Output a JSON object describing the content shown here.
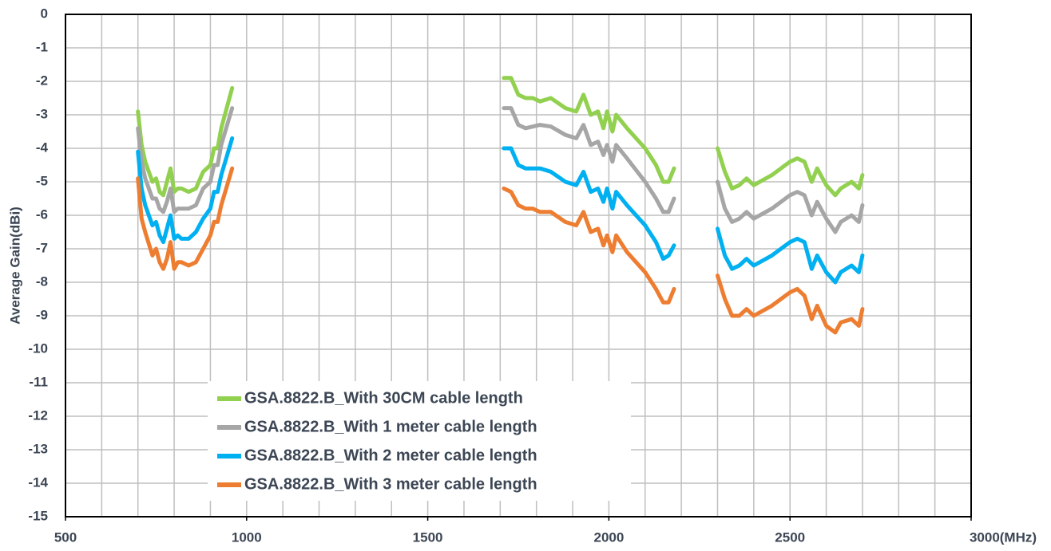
{
  "chart_data": {
    "type": "line",
    "y_label": "Average Gain(dBi)",
    "xlim": [
      500,
      3000
    ],
    "xticks": [
      500,
      1000,
      1500,
      2000,
      2500,
      {
        "value": 3000,
        "label": "3000(MHz)"
      }
    ],
    "x_grid_ticks": [
      500,
      600,
      700,
      800,
      900,
      1000,
      1100,
      1200,
      1300,
      1400,
      1500,
      1600,
      1700,
      1800,
      1900,
      2000,
      2100,
      2200,
      2300,
      2400,
      2500,
      2600,
      2700,
      2800,
      2900,
      3000
    ],
    "ylim": [
      -15,
      0
    ],
    "yticks": [
      0,
      -1,
      -2,
      -3,
      -4,
      -5,
      -6,
      -7,
      -8,
      -9,
      -10,
      -11,
      -12,
      -13,
      -14,
      -15
    ],
    "grid": true,
    "legend": "lower left",
    "x": [
      700,
      710,
      720,
      740,
      750,
      760,
      770,
      780,
      790,
      800,
      810,
      820,
      840,
      860,
      880,
      900,
      910,
      920,
      930,
      960,
      null,
      1710,
      1730,
      1750,
      1770,
      1790,
      1810,
      1840,
      1880,
      1910,
      1930,
      1950,
      1970,
      1985,
      1995,
      2010,
      2020,
      2050,
      2100,
      2130,
      2150,
      2165,
      2180,
      null,
      2300,
      2320,
      2340,
      2360,
      2380,
      2400,
      2450,
      2500,
      2520,
      2540,
      2560,
      2575,
      2600,
      2625,
      2640,
      2670,
      2690,
      2700
    ],
    "series": [
      {
        "name": "GSA.8822.B_With 30CM cable length",
        "color": "#92d050",
        "values": [
          -2.9,
          -3.9,
          -4.4,
          -5.0,
          -4.9,
          -5.3,
          -5.4,
          -5.0,
          -4.6,
          -5.3,
          -5.2,
          -5.2,
          -5.3,
          -5.2,
          -4.7,
          -4.5,
          -4.0,
          -4.0,
          -3.4,
          -2.2,
          null,
          -1.9,
          -1.9,
          -2.4,
          -2.5,
          -2.5,
          -2.6,
          -2.5,
          -2.8,
          -2.9,
          -2.4,
          -3.0,
          -2.9,
          -3.4,
          -2.9,
          -3.5,
          -3.0,
          -3.4,
          -4.0,
          -4.5,
          -5.0,
          -5.0,
          -4.6,
          null,
          -4.0,
          -4.7,
          -5.2,
          -5.1,
          -4.9,
          -5.1,
          -4.8,
          -4.4,
          -4.3,
          -4.4,
          -5.0,
          -4.6,
          -5.1,
          -5.4,
          -5.2,
          -5.0,
          -5.2,
          -4.8
        ]
      },
      {
        "name": "GSA.8822.B_With 1 meter cable length",
        "color": "#a6a6a6",
        "values": [
          -3.4,
          -4.4,
          -4.9,
          -5.5,
          -5.5,
          -5.8,
          -5.9,
          -5.6,
          -5.2,
          -5.9,
          -5.8,
          -5.8,
          -5.8,
          -5.7,
          -5.2,
          -5.0,
          -4.5,
          -4.5,
          -3.9,
          -2.8,
          null,
          -2.8,
          -2.8,
          -3.3,
          -3.4,
          -3.35,
          -3.3,
          -3.35,
          -3.6,
          -3.7,
          -3.3,
          -3.9,
          -3.8,
          -4.2,
          -3.9,
          -4.4,
          -3.9,
          -4.3,
          -5.0,
          -5.5,
          -5.9,
          -5.9,
          -5.5,
          null,
          -5.0,
          -5.8,
          -6.2,
          -6.1,
          -5.9,
          -6.1,
          -5.8,
          -5.4,
          -5.3,
          -5.4,
          -6.0,
          -5.6,
          -6.1,
          -6.5,
          -6.2,
          -6.0,
          -6.2,
          -5.7
        ]
      },
      {
        "name": "GSA.8822.B_With 2 meter cable length",
        "color": "#00b0f0",
        "values": [
          -4.1,
          -5.2,
          -5.7,
          -6.3,
          -6.2,
          -6.6,
          -6.8,
          -6.4,
          -6.0,
          -6.7,
          -6.6,
          -6.7,
          -6.7,
          -6.5,
          -6.1,
          -5.8,
          -5.3,
          -5.3,
          -4.8,
          -3.7,
          null,
          -4.0,
          -4.0,
          -4.5,
          -4.6,
          -4.6,
          -4.6,
          -4.7,
          -5.0,
          -5.1,
          -4.7,
          -5.3,
          -5.2,
          -5.6,
          -5.2,
          -5.8,
          -5.3,
          -5.7,
          -6.3,
          -6.8,
          -7.3,
          -7.2,
          -6.9,
          null,
          -6.4,
          -7.2,
          -7.6,
          -7.5,
          -7.3,
          -7.5,
          -7.2,
          -6.8,
          -6.7,
          -6.8,
          -7.6,
          -7.2,
          -7.7,
          -8.0,
          -7.7,
          -7.5,
          -7.7,
          -7.2
        ]
      },
      {
        "name": "GSA.8822.B_With 3 meter cable length",
        "color": "#ed7d31",
        "values": [
          -4.9,
          -6.1,
          -6.5,
          -7.2,
          -7.0,
          -7.4,
          -7.6,
          -7.3,
          -6.8,
          -7.6,
          -7.4,
          -7.4,
          -7.5,
          -7.4,
          -7.0,
          -6.6,
          -6.2,
          -6.2,
          -5.7,
          -4.6,
          null,
          -5.2,
          -5.3,
          -5.7,
          -5.8,
          -5.8,
          -5.9,
          -5.9,
          -6.2,
          -6.3,
          -5.9,
          -6.5,
          -6.4,
          -6.9,
          -6.6,
          -7.1,
          -6.6,
          -7.1,
          -7.7,
          -8.2,
          -8.6,
          -8.6,
          -8.2,
          null,
          -7.8,
          -8.5,
          -9.0,
          -9.0,
          -8.8,
          -9.0,
          -8.7,
          -8.3,
          -8.2,
          -8.4,
          -9.1,
          -8.7,
          -9.3,
          -9.5,
          -9.2,
          -9.1,
          -9.3,
          -8.8
        ]
      }
    ]
  }
}
